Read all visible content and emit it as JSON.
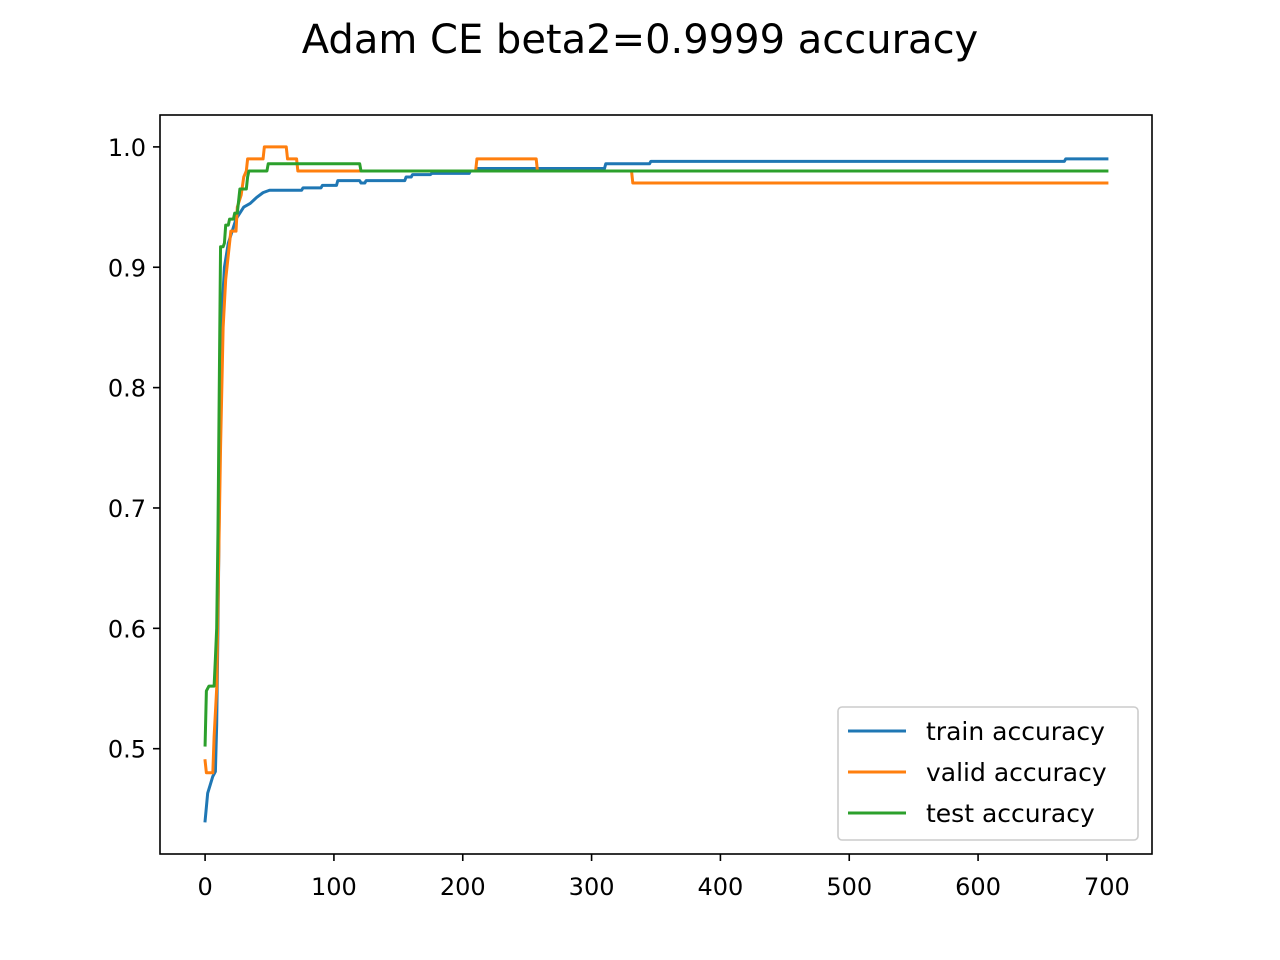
{
  "chart_data": {
    "type": "line",
    "title": "Adam CE beta2=0.9999 accuracy",
    "xlabel": "",
    "ylabel": "",
    "xlim": [
      -35,
      735
    ],
    "ylim": [
      0.4125,
      1.0265
    ],
    "xticks": [
      0,
      100,
      200,
      300,
      400,
      500,
      600,
      700
    ],
    "xtick_labels": [
      "0",
      "100",
      "200",
      "300",
      "400",
      "500",
      "600",
      "700"
    ],
    "yticks": [
      0.5,
      0.6,
      0.7,
      0.8,
      0.9,
      1.0
    ],
    "ytick_labels": [
      "0.5",
      "0.6",
      "0.7",
      "0.8",
      "0.9",
      "1.0"
    ],
    "grid": false,
    "legend_position": "lower right",
    "series": [
      {
        "name": "train accuracy",
        "color": "#1f77b4",
        "points": [
          [
            0,
            0.44
          ],
          [
            2,
            0.463
          ],
          [
            4,
            0.47
          ],
          [
            6,
            0.477
          ],
          [
            8,
            0.481
          ],
          [
            9,
            0.52
          ],
          [
            10,
            0.6
          ],
          [
            11,
            0.7
          ],
          [
            12,
            0.8
          ],
          [
            13,
            0.86
          ],
          [
            15,
            0.9
          ],
          [
            18,
            0.92
          ],
          [
            21,
            0.93
          ],
          [
            24,
            0.94
          ],
          [
            27,
            0.945
          ],
          [
            30,
            0.95
          ],
          [
            35,
            0.953
          ],
          [
            40,
            0.958
          ],
          [
            45,
            0.962
          ],
          [
            50,
            0.964
          ],
          [
            75,
            0.964
          ],
          [
            76,
            0.966
          ],
          [
            90,
            0.966
          ],
          [
            91,
            0.968
          ],
          [
            102,
            0.968
          ],
          [
            103,
            0.972
          ],
          [
            120,
            0.972
          ],
          [
            121,
            0.97
          ],
          [
            124,
            0.97
          ],
          [
            125,
            0.972
          ],
          [
            155,
            0.972
          ],
          [
            156,
            0.975
          ],
          [
            160,
            0.975
          ],
          [
            161,
            0.977
          ],
          [
            175,
            0.977
          ],
          [
            176,
            0.978
          ],
          [
            205,
            0.978
          ],
          [
            206,
            0.98
          ],
          [
            210,
            0.98
          ],
          [
            211,
            0.982
          ],
          [
            310,
            0.982
          ],
          [
            311,
            0.986
          ],
          [
            345,
            0.986
          ],
          [
            346,
            0.988
          ],
          [
            667,
            0.988
          ],
          [
            668,
            0.99
          ],
          [
            700,
            0.99
          ]
        ]
      },
      {
        "name": "valid accuracy",
        "color": "#ff7f0e",
        "points": [
          [
            0,
            0.49
          ],
          [
            1,
            0.48
          ],
          [
            6,
            0.48
          ],
          [
            7,
            0.51
          ],
          [
            9,
            0.55
          ],
          [
            10,
            0.62
          ],
          [
            12,
            0.75
          ],
          [
            14,
            0.85
          ],
          [
            16,
            0.89
          ],
          [
            18,
            0.91
          ],
          [
            20,
            0.93
          ],
          [
            24,
            0.93
          ],
          [
            25,
            0.95
          ],
          [
            28,
            0.96
          ],
          [
            30,
            0.975
          ],
          [
            32,
            0.98
          ],
          [
            33,
            0.99
          ],
          [
            45,
            0.99
          ],
          [
            46,
            1.0
          ],
          [
            63,
            1.0
          ],
          [
            64,
            0.99
          ],
          [
            71,
            0.99
          ],
          [
            72,
            0.98
          ],
          [
            210,
            0.98
          ],
          [
            211,
            0.99
          ],
          [
            257,
            0.99
          ],
          [
            258,
            0.98
          ],
          [
            331,
            0.98
          ],
          [
            332,
            0.97
          ],
          [
            700,
            0.97
          ]
        ]
      },
      {
        "name": "test accuracy",
        "color": "#2ca02c",
        "points": [
          [
            0,
            0.503
          ],
          [
            1,
            0.548
          ],
          [
            3,
            0.552
          ],
          [
            7,
            0.552
          ],
          [
            8,
            0.575
          ],
          [
            9,
            0.6
          ],
          [
            10,
            0.68
          ],
          [
            11,
            0.8
          ],
          [
            12,
            0.917
          ],
          [
            14,
            0.917
          ],
          [
            15,
            0.92
          ],
          [
            16,
            0.935
          ],
          [
            18,
            0.935
          ],
          [
            19,
            0.94
          ],
          [
            22,
            0.94
          ],
          [
            23,
            0.945
          ],
          [
            25,
            0.945
          ],
          [
            26,
            0.955
          ],
          [
            27,
            0.965
          ],
          [
            32,
            0.965
          ],
          [
            33,
            0.975
          ],
          [
            34,
            0.98
          ],
          [
            48,
            0.98
          ],
          [
            49,
            0.986
          ],
          [
            120,
            0.986
          ],
          [
            121,
            0.98
          ],
          [
            700,
            0.98
          ]
        ]
      }
    ]
  }
}
